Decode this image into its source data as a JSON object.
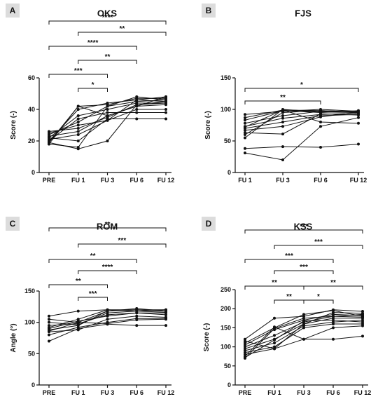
{
  "chart_data": [
    {
      "panel": "A",
      "type": "line",
      "title": "OKS",
      "xlabel": "",
      "ylabel": "Score (-)",
      "categories": [
        "PRE",
        "FU 1",
        "FU 3",
        "FU 6",
        "FU 12"
      ],
      "ylim": [
        0,
        60
      ],
      "yticks": [
        0,
        20,
        40,
        60
      ],
      "series": [
        {
          "values": [
            18,
            42,
            43,
            47,
            47
          ]
        },
        {
          "values": [
            20,
            40,
            44,
            46,
            45
          ]
        },
        {
          "values": [
            22,
            36,
            40,
            44,
            44
          ]
        },
        {
          "values": [
            24,
            32,
            42,
            45,
            46
          ]
        },
        {
          "values": [
            25,
            30,
            33,
            46,
            48
          ]
        },
        {
          "values": [
            26,
            28,
            35,
            43,
            44
          ]
        },
        {
          "values": [
            23,
            26,
            36,
            42,
            43
          ]
        },
        {
          "values": [
            19,
            42,
            36,
            42,
            48
          ]
        },
        {
          "values": [
            21,
            24,
            33,
            40,
            40
          ]
        },
        {
          "values": [
            18,
            16,
            42,
            48,
            46
          ]
        },
        {
          "values": [
            19,
            15,
            20,
            43,
            45
          ]
        },
        {
          "values": [
            22,
            20,
            34,
            34,
            34
          ]
        },
        {
          "values": [
            20,
            34,
            38,
            38,
            38
          ]
        }
      ],
      "significance": [
        {
          "from": "PRE",
          "to": "FU 12",
          "label": "****"
        },
        {
          "from": "FU 1",
          "to": "FU 12",
          "label": "**"
        },
        {
          "from": "PRE",
          "to": "FU 6",
          "label": "****"
        },
        {
          "from": "FU 1",
          "to": "FU 6",
          "label": "**"
        },
        {
          "from": "PRE",
          "to": "FU 3",
          "label": "***"
        },
        {
          "from": "FU 1",
          "to": "FU 3",
          "label": "*"
        }
      ]
    },
    {
      "panel": "B",
      "type": "line",
      "title": "FJS",
      "xlabel": "",
      "ylabel": "Score (-)",
      "categories": [
        "FU 1",
        "FU 3",
        "FU 6",
        "FU 12"
      ],
      "ylim": [
        0,
        150
      ],
      "yticks": [
        0,
        50,
        100,
        150
      ],
      "series": [
        {
          "values": [
            92,
            97,
            100,
            97
          ]
        },
        {
          "values": [
            87,
            99,
            98,
            96
          ]
        },
        {
          "values": [
            83,
            98,
            95,
            98
          ]
        },
        {
          "values": [
            78,
            90,
            97,
            95
          ]
        },
        {
          "values": [
            73,
            86,
            92,
            94
          ]
        },
        {
          "values": [
            70,
            80,
            90,
            92
          ]
        },
        {
          "values": [
            67,
            73,
            88,
            96
          ]
        },
        {
          "values": [
            63,
            61,
            93,
            91
          ]
        },
        {
          "values": [
            60,
            95,
            98,
            96
          ]
        },
        {
          "values": [
            55,
            100,
            96,
            95
          ]
        },
        {
          "values": [
            38,
            41,
            40,
            45
          ]
        },
        {
          "values": [
            31,
            20,
            73,
            87
          ]
        },
        {
          "values": [
            72,
            99,
            80,
            78
          ]
        }
      ],
      "significance": [
        {
          "from": "FU 1",
          "to": "FU 12",
          "label": "*"
        },
        {
          "from": "FU 1",
          "to": "FU 6",
          "label": "**"
        }
      ]
    },
    {
      "panel": "C",
      "type": "line",
      "title": "ROM",
      "xlabel": "",
      "ylabel": "Angle (°)",
      "categories": [
        "PRE",
        "FU 1",
        "FU 3",
        "FU 6",
        "FU 12"
      ],
      "ylim": [
        0,
        150
      ],
      "yticks": [
        0,
        50,
        100,
        150
      ],
      "series": [
        {
          "values": [
            110,
            118,
            120,
            120,
            120
          ]
        },
        {
          "values": [
            105,
            100,
            118,
            122,
            118
          ]
        },
        {
          "values": [
            100,
            96,
            115,
            118,
            116
          ]
        },
        {
          "values": [
            95,
            98,
            112,
            115,
            115
          ]
        },
        {
          "values": [
            90,
            102,
            110,
            115,
            112
          ]
        },
        {
          "values": [
            88,
            95,
            118,
            120,
            118
          ]
        },
        {
          "values": [
            85,
            88,
            105,
            110,
            108
          ]
        },
        {
          "values": [
            80,
            92,
            100,
            106,
            106
          ]
        },
        {
          "values": [
            70,
            90,
            97,
            95,
            95
          ]
        },
        {
          "values": [
            92,
            105,
            120,
            118,
            120
          ]
        },
        {
          "values": [
            86,
            100,
            98,
            104,
            105
          ]
        }
      ],
      "significance": [
        {
          "from": "PRE",
          "to": "FU 12",
          "label": "**"
        },
        {
          "from": "FU 1",
          "to": "FU 12",
          "label": "***"
        },
        {
          "from": "PRE",
          "to": "FU 6",
          "label": "**"
        },
        {
          "from": "FU 1",
          "to": "FU 6",
          "label": "****"
        },
        {
          "from": "PRE",
          "to": "FU 3",
          "label": "**"
        },
        {
          "from": "FU 1",
          "to": "FU 3",
          "label": "***"
        }
      ]
    },
    {
      "panel": "D",
      "type": "line",
      "title": "KSS",
      "xlabel": "",
      "ylabel": "Score (-)",
      "categories": [
        "PRE",
        "FU 1",
        "FU 3",
        "FU 6",
        "FU 12"
      ],
      "ylim": [
        0,
        250
      ],
      "yticks": [
        0,
        50,
        100,
        150,
        200,
        250
      ],
      "series": [
        {
          "values": [
            120,
            175,
            180,
            197,
            193
          ]
        },
        {
          "values": [
            110,
            150,
            185,
            195,
            180
          ]
        },
        {
          "values": [
            105,
            145,
            170,
            185,
            182
          ]
        },
        {
          "values": [
            100,
            130,
            165,
            180,
            178
          ]
        },
        {
          "values": [
            95,
            120,
            160,
            175,
            175
          ]
        },
        {
          "values": [
            90,
            110,
            155,
            165,
            170
          ]
        },
        {
          "values": [
            85,
            100,
            150,
            160,
            160
          ]
        },
        {
          "values": [
            80,
            95,
            120,
            150,
            155
          ]
        },
        {
          "values": [
            75,
            152,
            120,
            120,
            128
          ]
        },
        {
          "values": [
            70,
            148,
            175,
            180,
            185
          ]
        },
        {
          "values": [
            115,
            95,
            160,
            190,
            188
          ]
        },
        {
          "values": [
            72,
            118,
            168,
            170,
            165
          ]
        }
      ],
      "significance": [
        {
          "from": "PRE",
          "to": "FU 12",
          "label": "***"
        },
        {
          "from": "FU 1",
          "to": "FU 12",
          "label": "***"
        },
        {
          "from": "PRE",
          "to": "FU 6",
          "label": "***"
        },
        {
          "from": "FU 1",
          "to": "FU 6",
          "label": "***"
        },
        {
          "from": "PRE",
          "to": "FU 3",
          "label": "**"
        },
        {
          "from": "FU 3",
          "to": "FU 12",
          "label": "**"
        },
        {
          "from": "FU 1",
          "to": "FU 3",
          "label": "**"
        },
        {
          "from": "FU 3",
          "to": "FU 6",
          "label": "*"
        }
      ]
    }
  ]
}
